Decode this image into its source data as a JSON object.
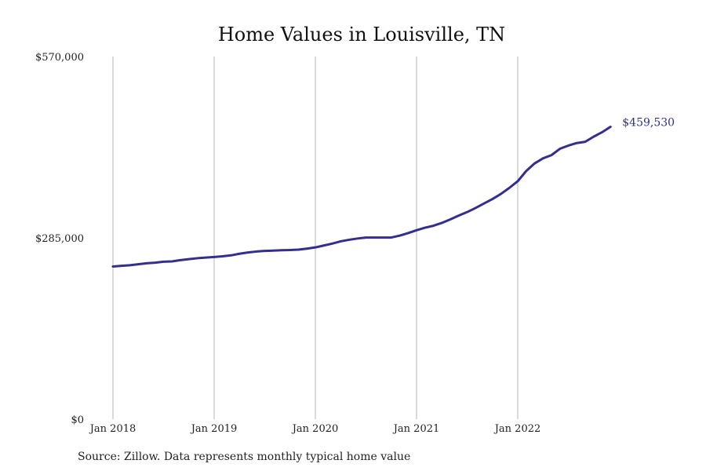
{
  "chart_data": {
    "type": "line",
    "title": "Home Values in Louisville, TN",
    "xlabel": "",
    "ylabel": "",
    "ylim": [
      0,
      570000
    ],
    "y_ticks": [
      {
        "value": 0,
        "label": "$0"
      },
      {
        "value": 285000,
        "label": "$285,000"
      },
      {
        "value": 570000,
        "label": "$570,000"
      }
    ],
    "x_ticks": [
      {
        "month_index": 0,
        "label": "Jan 2018"
      },
      {
        "month_index": 12,
        "label": "Jan 2019"
      },
      {
        "month_index": 24,
        "label": "Jan 2020"
      },
      {
        "month_index": 36,
        "label": "Jan 2021"
      },
      {
        "month_index": 48,
        "label": "Jan 2022"
      }
    ],
    "grid": "vertical-at-x-ticks",
    "series": [
      {
        "color": "#322f8f",
        "end_label": "$459,530",
        "x": [
          "2018-01",
          "2018-02",
          "2018-03",
          "2018-04",
          "2018-05",
          "2018-06",
          "2018-07",
          "2018-08",
          "2018-09",
          "2018-10",
          "2018-11",
          "2018-12",
          "2019-01",
          "2019-02",
          "2019-03",
          "2019-04",
          "2019-05",
          "2019-06",
          "2019-07",
          "2019-08",
          "2019-09",
          "2019-10",
          "2019-11",
          "2019-12",
          "2020-01",
          "2020-02",
          "2020-03",
          "2020-04",
          "2020-05",
          "2020-06",
          "2020-07",
          "2020-08",
          "2020-09",
          "2020-10",
          "2020-11",
          "2020-12",
          "2021-01",
          "2021-02",
          "2021-03",
          "2021-04",
          "2021-05",
          "2021-06",
          "2021-07",
          "2021-08",
          "2021-09",
          "2021-10",
          "2021-11",
          "2021-12",
          "2022-01",
          "2022-02",
          "2022-03",
          "2022-04",
          "2022-05",
          "2022-06",
          "2022-07",
          "2022-08",
          "2022-09",
          "2022-10",
          "2022-11",
          "2022-12"
        ],
        "values": [
          240000,
          241000,
          242000,
          243500,
          245000,
          246000,
          247500,
          248000,
          250000,
          251500,
          253000,
          254000,
          255000,
          256000,
          257500,
          260000,
          262000,
          263500,
          264500,
          265000,
          265500,
          265800,
          266500,
          268000,
          270000,
          273000,
          276000,
          279500,
          282000,
          284000,
          285500,
          285500,
          285500,
          285500,
          288500,
          292500,
          297000,
          301000,
          304000,
          308500,
          314000,
          320000,
          325500,
          332000,
          339000,
          346000,
          354000,
          363500,
          374000,
          390000,
          402000,
          410000,
          415000,
          425000,
          430000,
          434000,
          436000,
          444000,
          451000,
          459530
        ]
      }
    ]
  },
  "source_text": "Source: Zillow. Data represents monthly typical home value"
}
